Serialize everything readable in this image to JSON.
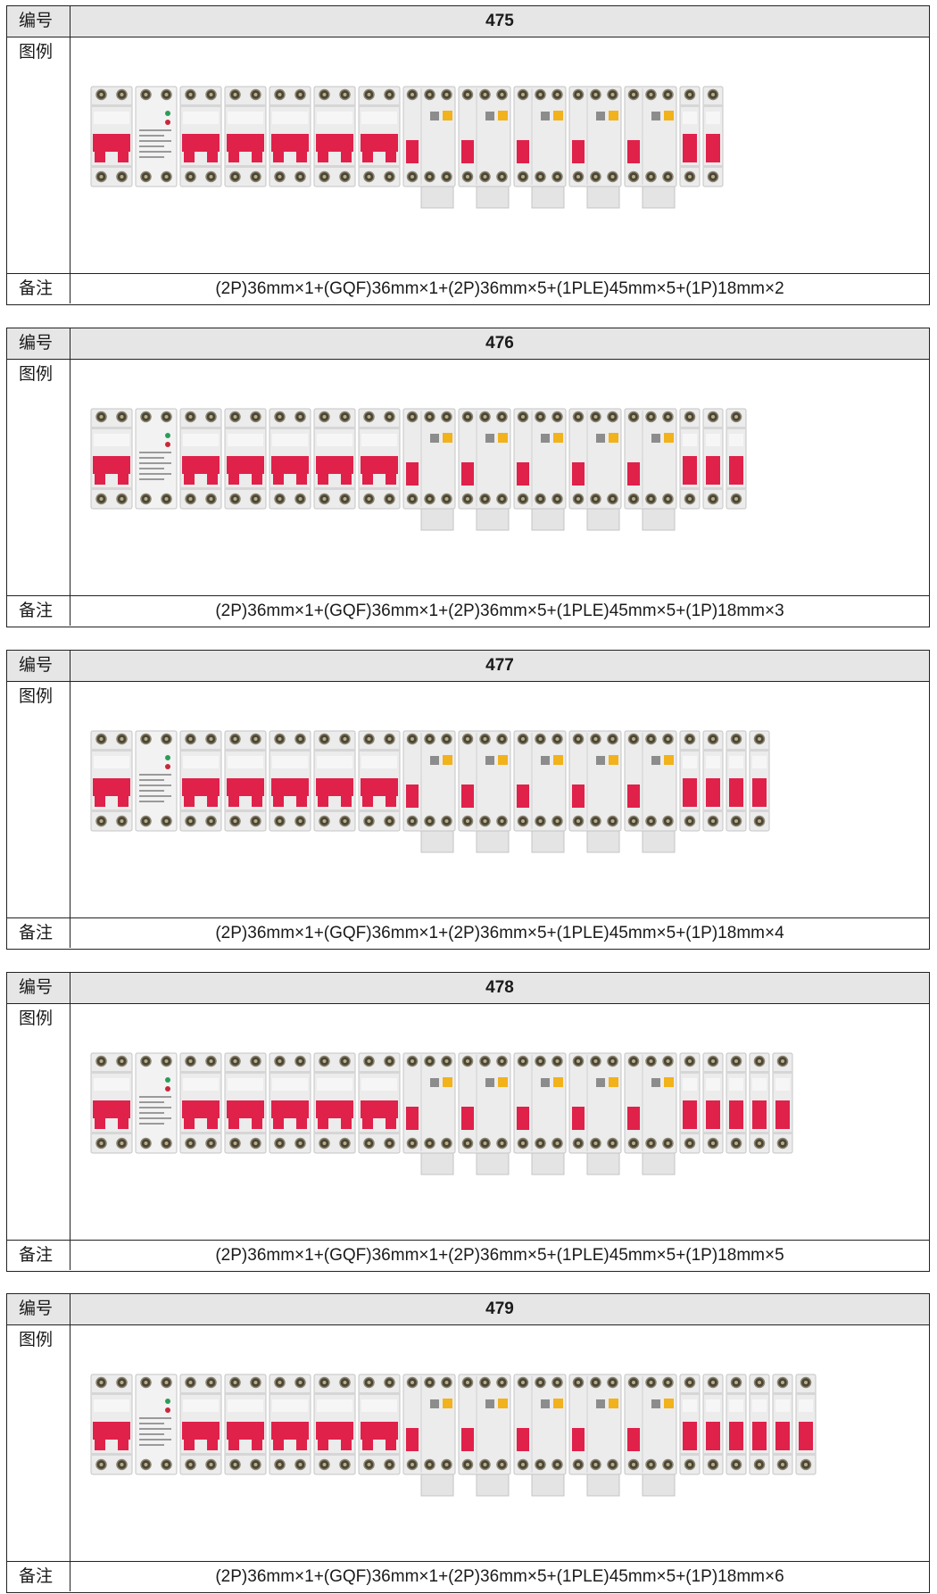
{
  "labels": {
    "number": "编号",
    "figure": "图例",
    "remark": "备注"
  },
  "colors": {
    "handle_red": "#e0214a",
    "module_body": "#ececec",
    "yellow_test_button": "#f2b21b",
    "header_fill": "#e6e6e6"
  },
  "blocks": [
    {
      "number": "475",
      "remark": "(2P)36mm×1+(GQF)36mm×1+(2P)36mm×5+(1PLE)45mm×5+(1P)18mm×2",
      "modules": [
        "2P",
        "GQF",
        "2P",
        "2P",
        "2P",
        "2P",
        "2P",
        "1PLE",
        "1PLE",
        "1PLE",
        "1PLE",
        "1PLE",
        "1P",
        "1P"
      ]
    },
    {
      "number": "476",
      "remark": "(2P)36mm×1+(GQF)36mm×1+(2P)36mm×5+(1PLE)45mm×5+(1P)18mm×3",
      "modules": [
        "2P",
        "GQF",
        "2P",
        "2P",
        "2P",
        "2P",
        "2P",
        "1PLE",
        "1PLE",
        "1PLE",
        "1PLE",
        "1PLE",
        "1P",
        "1P",
        "1P"
      ]
    },
    {
      "number": "477",
      "remark": "(2P)36mm×1+(GQF)36mm×1+(2P)36mm×5+(1PLE)45mm×5+(1P)18mm×4",
      "modules": [
        "2P",
        "GQF",
        "2P",
        "2P",
        "2P",
        "2P",
        "2P",
        "1PLE",
        "1PLE",
        "1PLE",
        "1PLE",
        "1PLE",
        "1P",
        "1P",
        "1P",
        "1P"
      ]
    },
    {
      "number": "478",
      "remark": "(2P)36mm×1+(GQF)36mm×1+(2P)36mm×5+(1PLE)45mm×5+(1P)18mm×5",
      "modules": [
        "2P",
        "GQF",
        "2P",
        "2P",
        "2P",
        "2P",
        "2P",
        "1PLE",
        "1PLE",
        "1PLE",
        "1PLE",
        "1PLE",
        "1P",
        "1P",
        "1P",
        "1P",
        "1P"
      ]
    },
    {
      "number": "479",
      "remark": "(2P)36mm×1+(GQF)36mm×1+(2P)36mm×5+(1PLE)45mm×5+(1P)18mm×6",
      "modules": [
        "2P",
        "GQF",
        "2P",
        "2P",
        "2P",
        "2P",
        "2P",
        "1PLE",
        "1PLE",
        "1PLE",
        "1PLE",
        "1PLE",
        "1P",
        "1P",
        "1P",
        "1P",
        "1P",
        "1P"
      ]
    }
  ]
}
